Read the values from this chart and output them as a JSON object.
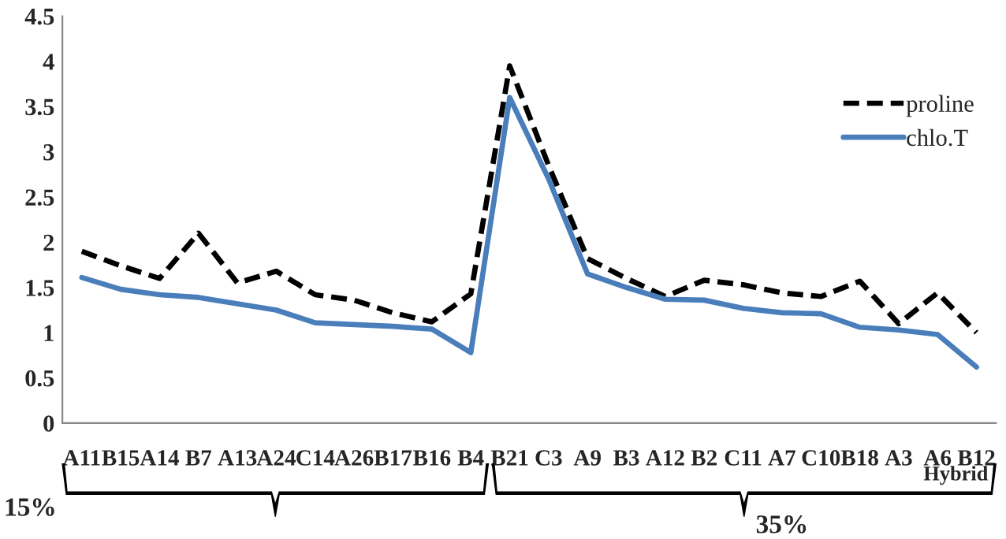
{
  "chart_data": {
    "type": "line",
    "categories": [
      "A11",
      "B15",
      "A14",
      "B7",
      "A13",
      "A24",
      "C14",
      "A26",
      "B17",
      "B16",
      "B4",
      "B21",
      "C3",
      "A9",
      "B3",
      "A12",
      "B2",
      "C11",
      "A7",
      "C10",
      "B18",
      "A3",
      "A6",
      "B12"
    ],
    "series": [
      {
        "name": "proline",
        "color": "#000000",
        "line_style": "dashed",
        "values": [
          1.9,
          1.74,
          1.6,
          2.1,
          1.55,
          1.68,
          1.42,
          1.36,
          1.22,
          1.12,
          1.43,
          3.95,
          2.85,
          1.82,
          1.6,
          1.4,
          1.58,
          1.53,
          1.44,
          1.4,
          1.57,
          1.1,
          1.44,
          1.0
        ]
      },
      {
        "name": "chlo.T",
        "color": "#4a7ebb",
        "line_style": "solid",
        "values": [
          1.61,
          1.48,
          1.42,
          1.39,
          1.32,
          1.25,
          1.11,
          1.09,
          1.07,
          1.04,
          0.78,
          3.6,
          2.7,
          1.65,
          1.5,
          1.37,
          1.36,
          1.27,
          1.22,
          1.21,
          1.06,
          1.03,
          0.98,
          0.62
        ]
      }
    ],
    "ylim": [
      0,
      4.5
    ],
    "yticks": [
      0,
      0.5,
      1,
      1.5,
      2,
      2.5,
      3,
      3.5,
      4,
      4.5
    ],
    "grid": false,
    "legend": "top right",
    "marker": "none",
    "annotations": [
      "15%",
      "35%",
      "Hybrid"
    ]
  }
}
